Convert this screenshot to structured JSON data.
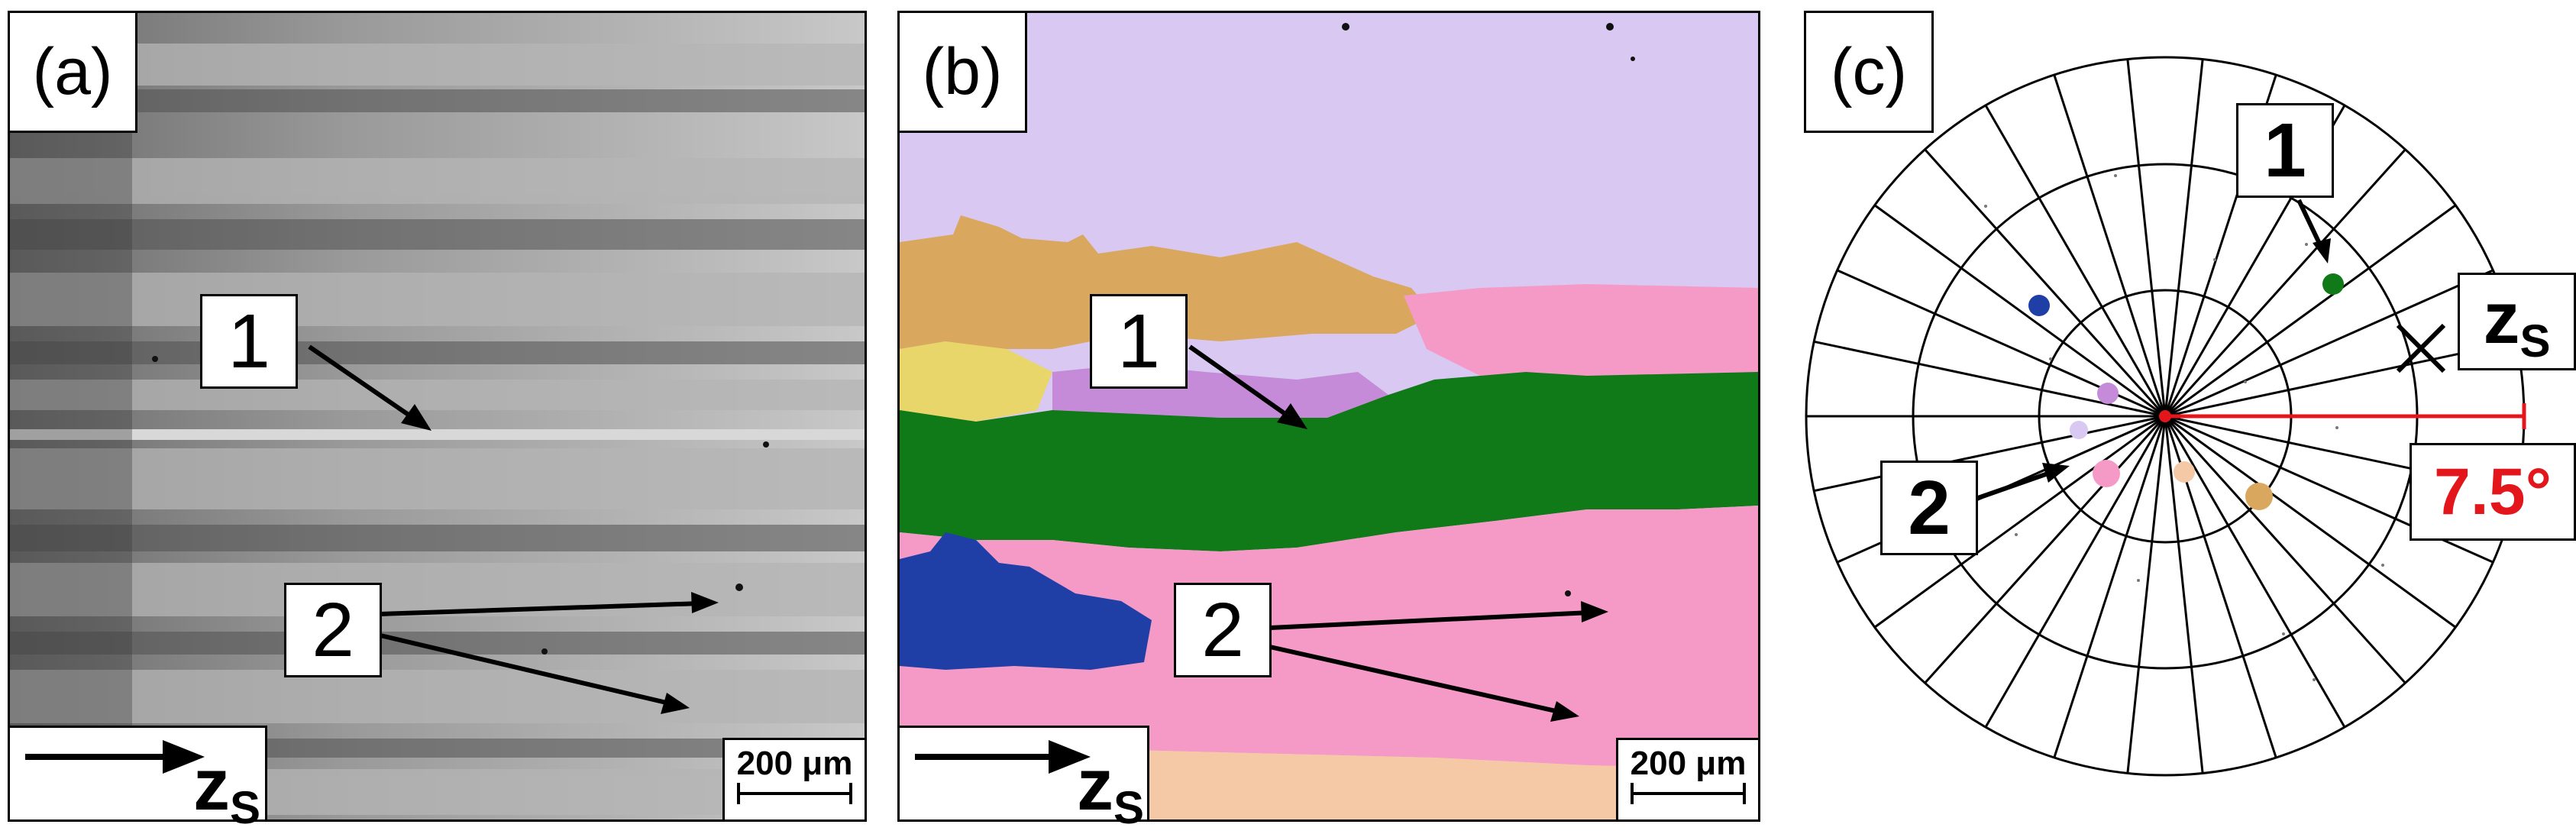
{
  "panels": [
    {
      "label": "(a)",
      "markers": [
        "1",
        "2"
      ],
      "scalebar": "200 μm",
      "axis": {
        "main": "z",
        "sub": "S"
      }
    },
    {
      "label": "(b)",
      "markers": [
        "1",
        "2"
      ],
      "scalebar": "200 μm",
      "axis": {
        "main": "z",
        "sub": "S"
      }
    },
    {
      "label": "(c)",
      "markers": [
        "1",
        "2"
      ],
      "axis": {
        "main": "z",
        "sub": "S"
      },
      "angle": "7.5°"
    }
  ],
  "colors": {
    "ipf_purple": "#d8c8f2",
    "ipf_orange": "#d9a85e",
    "ipf_pink": "#f59ac6",
    "ipf_green": "#0f7a17",
    "ipf_blue": "#1f3fa6",
    "ipf_peach": "#f6c9a6",
    "angle_red": "#e3171b"
  }
}
